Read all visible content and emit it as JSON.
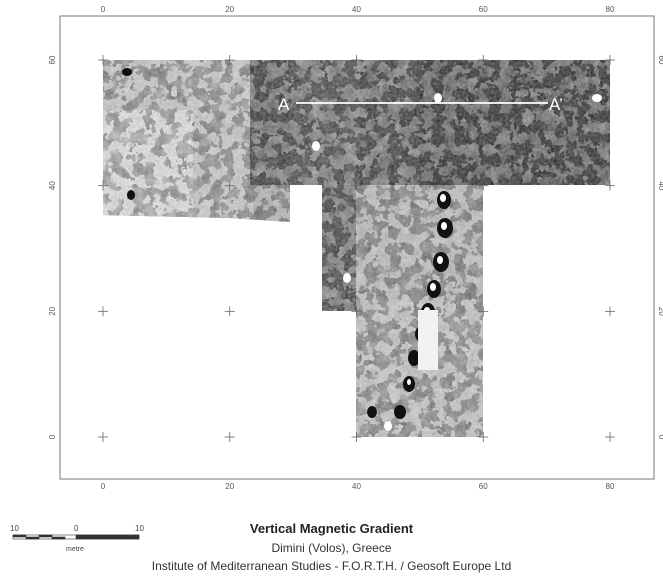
{
  "map": {
    "x_ticks": [
      "0",
      "20",
      "40",
      "60",
      "80"
    ],
    "y_ticks": [
      "0",
      "20",
      "40",
      "60"
    ],
    "profile_start": "A",
    "profile_end": "A’"
  },
  "scale_bar": {
    "left": "10",
    "middle": "0",
    "right": "10",
    "unit": "metre"
  },
  "caption": {
    "title": "Vertical Magnetic Gradient",
    "subtitle": "Dimini (Volos), Greece",
    "institution": "Institute of Mediterranean Studies - F.O.R.T.H. / Geosoft Europe Ltd"
  },
  "colors": {
    "survey_dark": "#3a3a3a",
    "survey_mid": "#8a8a8a",
    "survey_light": "#c8c8c8",
    "frame": "#777777"
  }
}
